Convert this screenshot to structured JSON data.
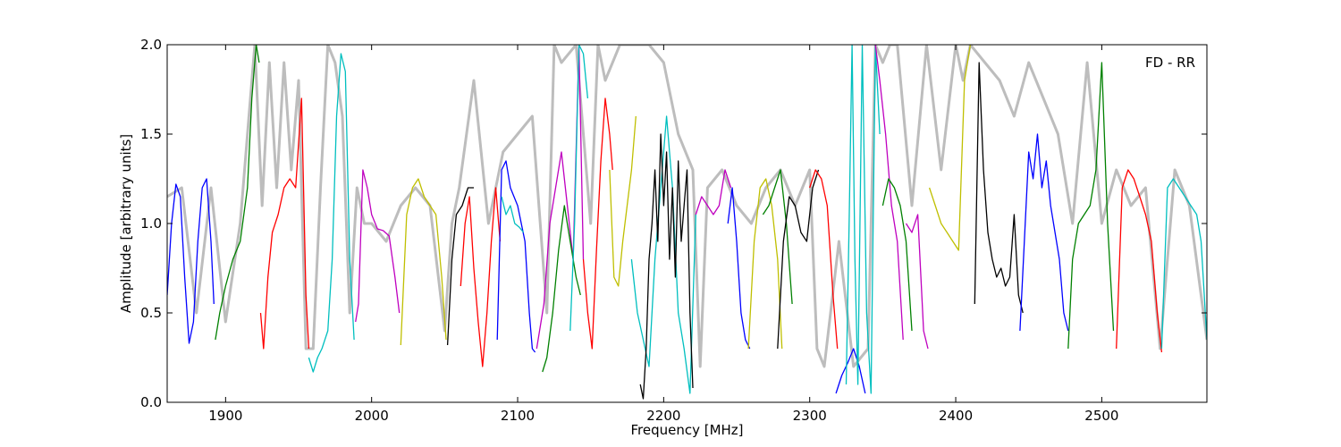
{
  "chart_data": {
    "type": "line",
    "title": "",
    "xlabel": "Frequency [MHz]",
    "ylabel": "Amplitude [arbitrary units]",
    "annotation": "FD - RR",
    "annotation_position": "top-right",
    "xlim": [
      1860,
      2572
    ],
    "ylim": [
      0.0,
      2.0
    ],
    "xticks": [
      1900,
      2000,
      2100,
      2200,
      2300,
      2400,
      2500
    ],
    "xtick_labels": [
      "1900",
      "2000",
      "2100",
      "2200",
      "2300",
      "2400",
      "2500"
    ],
    "yticks": [
      0.0,
      0.5,
      1.0,
      1.5,
      2.0
    ],
    "ytick_labels": [
      "0.0",
      "0.5",
      "1.0",
      "1.5",
      "2.0"
    ],
    "grid": false,
    "legend": "none",
    "envelope": {
      "color": "#bdbdbd",
      "x": [
        1860,
        1870,
        1880,
        1890,
        1900,
        1910,
        1915,
        1920,
        1925,
        1930,
        1935,
        1940,
        1945,
        1950,
        1955,
        1960,
        1965,
        1970,
        1975,
        1980,
        1985,
        1990,
        1995,
        2000,
        2010,
        2020,
        2030,
        2040,
        2050,
        2055,
        2060,
        2070,
        2080,
        2090,
        2100,
        2110,
        2120,
        2125,
        2130,
        2140,
        2150,
        2155,
        2160,
        2170,
        2175,
        2180,
        2190,
        2200,
        2210,
        2220,
        2225,
        2230,
        2240,
        2250,
        2260,
        2270,
        2280,
        2290,
        2300,
        2305,
        2310,
        2320,
        2330,
        2340,
        2345,
        2350,
        2355,
        2360,
        2370,
        2380,
        2390,
        2400,
        2405,
        2410,
        2420,
        2430,
        2440,
        2450,
        2460,
        2470,
        2480,
        2490,
        2500,
        2510,
        2520,
        2530,
        2540,
        2550,
        2560,
        2572
      ],
      "y": [
        1.15,
        1.2,
        0.5,
        1.2,
        0.45,
        1.0,
        1.5,
        2.0,
        1.1,
        1.9,
        1.2,
        1.9,
        1.3,
        1.8,
        0.3,
        0.3,
        1.2,
        2.0,
        1.9,
        1.6,
        0.5,
        1.2,
        1.0,
        1.0,
        0.9,
        1.1,
        1.2,
        1.1,
        0.4,
        1.0,
        1.2,
        1.8,
        1.0,
        1.4,
        1.5,
        1.6,
        0.5,
        2.0,
        1.9,
        2.0,
        1.0,
        2.0,
        1.8,
        2.0,
        2.0,
        2.0,
        2.0,
        1.9,
        1.5,
        1.3,
        0.2,
        1.2,
        1.3,
        1.1,
        1.0,
        1.2,
        1.3,
        1.1,
        1.3,
        0.3,
        0.2,
        0.9,
        0.2,
        0.3,
        2.0,
        1.9,
        2.0,
        2.0,
        1.1,
        2.0,
        1.3,
        2.0,
        1.8,
        2.0,
        1.9,
        1.8,
        1.6,
        1.9,
        1.7,
        1.5,
        1.0,
        1.9,
        1.0,
        1.3,
        1.1,
        1.2,
        0.3,
        1.3,
        1.1,
        0.35
      ]
    },
    "series": [
      {
        "color": "#0000ff",
        "x": [
          1860,
          1863,
          1866,
          1869,
          1872,
          1875,
          1878,
          1881,
          1884,
          1887,
          1890,
          1892
        ],
        "y": [
          0.6,
          1.0,
          1.22,
          1.15,
          0.7,
          0.33,
          0.45,
          0.9,
          1.2,
          1.25,
          0.9,
          0.55
        ]
      },
      {
        "color": "#008000",
        "x": [
          1893,
          1896,
          1900,
          1905,
          1910,
          1915,
          1918,
          1921,
          1923
        ],
        "y": [
          0.35,
          0.5,
          0.65,
          0.8,
          0.9,
          1.2,
          1.7,
          2.0,
          1.9
        ]
      },
      {
        "color": "#ff0000",
        "x": [
          1924,
          1926,
          1929,
          1932,
          1936,
          1940,
          1944,
          1948,
          1952,
          1955,
          1957
        ],
        "y": [
          0.5,
          0.3,
          0.7,
          0.95,
          1.05,
          1.2,
          1.25,
          1.2,
          1.7,
          0.6,
          0.3
        ]
      },
      {
        "color": "#00bfbf",
        "x": [
          1957,
          1960,
          1963,
          1966,
          1970,
          1973,
          1976,
          1979,
          1982,
          1985,
          1988
        ],
        "y": [
          0.25,
          0.17,
          0.25,
          0.3,
          0.4,
          0.8,
          1.6,
          1.95,
          1.85,
          0.8,
          0.35
        ]
      },
      {
        "color": "#bf00bf",
        "x": [
          1989,
          1991,
          1994,
          1997,
          2000,
          2004,
          2008,
          2012,
          2016,
          2019
        ],
        "y": [
          0.45,
          0.55,
          1.3,
          1.2,
          1.05,
          0.97,
          0.96,
          0.93,
          0.7,
          0.5
        ]
      },
      {
        "color": "#bfbf00",
        "x": [
          2020,
          2024,
          2028,
          2032,
          2036,
          2040,
          2044,
          2048,
          2051
        ],
        "y": [
          0.32,
          1.05,
          1.2,
          1.25,
          1.15,
          1.1,
          1.05,
          0.7,
          0.35
        ]
      },
      {
        "color": "#000000",
        "x": [
          2052,
          2055,
          2058,
          2062,
          2066,
          2070
        ],
        "y": [
          0.32,
          0.8,
          1.05,
          1.1,
          1.2,
          1.2
        ]
      },
      {
        "color": "#ff0000",
        "x": [
          2061,
          2064,
          2067,
          2070,
          2073,
          2076,
          2079,
          2082,
          2085,
          2088
        ],
        "y": [
          0.65,
          1.0,
          1.15,
          0.75,
          0.45,
          0.2,
          0.5,
          0.9,
          1.2,
          0.9
        ]
      },
      {
        "color": "#0000ff",
        "x": [
          2086,
          2089,
          2092,
          2095,
          2100,
          2105,
          2108,
          2110,
          2112
        ],
        "y": [
          0.35,
          1.3,
          1.35,
          1.2,
          1.1,
          0.9,
          0.5,
          0.3,
          0.28
        ]
      },
      {
        "color": "#00bfbf",
        "x": [
          2089,
          2092,
          2095,
          2098,
          2101,
          2104
        ],
        "y": [
          1.15,
          1.05,
          1.1,
          1.0,
          0.98,
          0.95
        ]
      },
      {
        "color": "#bf00bf",
        "x": [
          2113,
          2118,
          2122,
          2126,
          2130,
          2134,
          2138,
          2142,
          2145
        ],
        "y": [
          0.3,
          0.55,
          1.0,
          1.2,
          1.4,
          1.1,
          0.8,
          2.0,
          0.8
        ]
      },
      {
        "color": "#008000",
        "x": [
          2117,
          2120,
          2124,
          2128,
          2132,
          2136,
          2140,
          2143
        ],
        "y": [
          0.17,
          0.25,
          0.5,
          0.85,
          1.1,
          0.9,
          0.7,
          0.6
        ]
      },
      {
        "color": "#00bfbf",
        "x": [
          2136,
          2139,
          2142,
          2145,
          2148
        ],
        "y": [
          0.4,
          1.0,
          2.0,
          1.95,
          1.7
        ]
      },
      {
        "color": "#ff0000",
        "x": [
          2145,
          2148,
          2151,
          2154,
          2157,
          2160,
          2163,
          2165
        ],
        "y": [
          0.8,
          0.5,
          0.3,
          0.85,
          1.35,
          1.7,
          1.5,
          1.3
        ]
      },
      {
        "color": "#bfbf00",
        "x": [
          2163,
          2166,
          2169,
          2172,
          2175,
          2178,
          2181
        ],
        "y": [
          1.3,
          0.7,
          0.65,
          0.9,
          1.1,
          1.3,
          1.6
        ]
      },
      {
        "color": "#00bfbf",
        "x": [
          2178,
          2182,
          2186,
          2190,
          2194,
          2198,
          2202,
          2206,
          2210,
          2214,
          2218,
          2222
        ],
        "y": [
          0.8,
          0.5,
          0.35,
          0.2,
          0.8,
          1.2,
          1.6,
          1.2,
          0.5,
          0.3,
          0.05,
          1.05
        ]
      },
      {
        "color": "#000000",
        "x": [
          2184,
          2186,
          2188,
          2190,
          2192,
          2194,
          2196,
          2198,
          2200,
          2202,
          2204,
          2206,
          2208,
          2210,
          2212,
          2214,
          2216,
          2218,
          2220
        ],
        "y": [
          0.1,
          0.02,
          0.3,
          0.8,
          1.0,
          1.3,
          0.9,
          1.5,
          1.1,
          1.4,
          0.8,
          1.2,
          0.7,
          1.35,
          0.9,
          1.1,
          1.3,
          0.5,
          0.08
        ]
      },
      {
        "color": "#bf00bf",
        "x": [
          2222,
          2226,
          2230,
          2234,
          2238,
          2242,
          2246
        ],
        "y": [
          1.05,
          1.15,
          1.1,
          1.05,
          1.1,
          1.3,
          1.2
        ]
      },
      {
        "color": "#0000ff",
        "x": [
          2244,
          2247,
          2250,
          2253,
          2256,
          2259
        ],
        "y": [
          1.0,
          1.2,
          0.9,
          0.5,
          0.35,
          0.3
        ]
      },
      {
        "color": "#bfbf00",
        "x": [
          2258,
          2262,
          2266,
          2270,
          2274,
          2278,
          2281
        ],
        "y": [
          0.3,
          0.9,
          1.2,
          1.25,
          1.1,
          0.8,
          0.3
        ]
      },
      {
        "color": "#008000",
        "x": [
          2268,
          2272,
          2276,
          2280,
          2284,
          2288
        ],
        "y": [
          1.05,
          1.1,
          1.2,
          1.3,
          1.0,
          0.55
        ]
      },
      {
        "color": "#000000",
        "x": [
          2278,
          2282,
          2286,
          2290,
          2294,
          2298,
          2302,
          2306
        ],
        "y": [
          0.3,
          0.9,
          1.15,
          1.1,
          0.95,
          0.9,
          1.2,
          1.3
        ]
      },
      {
        "color": "#ff0000",
        "x": [
          2300,
          2304,
          2308,
          2312,
          2316,
          2319
        ],
        "y": [
          1.2,
          1.3,
          1.25,
          1.1,
          0.6,
          0.3
        ]
      },
      {
        "color": "#0000ff",
        "x": [
          2318,
          2322,
          2326,
          2330,
          2334,
          2338
        ],
        "y": [
          0.05,
          0.15,
          0.22,
          0.3,
          0.2,
          0.05
        ]
      },
      {
        "color": "#00bfbf",
        "x": [
          2325,
          2327,
          2329,
          2331,
          2333,
          2336,
          2339,
          2342,
          2345,
          2348
        ],
        "y": [
          0.1,
          1.0,
          2.0,
          0.8,
          0.1,
          2.0,
          0.5,
          0.05,
          2.0,
          1.5
        ]
      },
      {
        "color": "#bf00bf",
        "x": [
          2345,
          2348,
          2352,
          2356,
          2360,
          2364
        ],
        "y": [
          2.0,
          1.8,
          1.5,
          1.1,
          0.9,
          0.35
        ]
      },
      {
        "color": "#008000",
        "x": [
          2350,
          2354,
          2358,
          2362,
          2366,
          2370
        ],
        "y": [
          1.1,
          1.25,
          1.2,
          1.1,
          0.9,
          0.4
        ]
      },
      {
        "color": "#bf00bf",
        "x": [
          2366,
          2370,
          2374,
          2378,
          2381
        ],
        "y": [
          1.0,
          0.95,
          1.05,
          0.4,
          0.3
        ]
      },
      {
        "color": "#bfbf00",
        "x": [
          2382,
          2386,
          2390,
          2394,
          2398,
          2402,
          2406,
          2410
        ],
        "y": [
          1.2,
          1.1,
          1.0,
          0.95,
          0.9,
          0.85,
          1.8,
          2.0
        ]
      },
      {
        "color": "#000000",
        "x": [
          2413,
          2416,
          2419,
          2422,
          2425,
          2428,
          2431,
          2434,
          2437,
          2440,
          2443,
          2446
        ],
        "y": [
          0.55,
          1.9,
          1.3,
          0.95,
          0.8,
          0.7,
          0.75,
          0.65,
          0.7,
          1.05,
          0.6,
          0.5
        ]
      },
      {
        "color": "#0000ff",
        "x": [
          2444,
          2447,
          2450,
          2453,
          2456,
          2459,
          2462,
          2465,
          2468,
          2471,
          2474,
          2477
        ],
        "y": [
          0.4,
          0.9,
          1.4,
          1.25,
          1.5,
          1.2,
          1.35,
          1.1,
          0.95,
          0.8,
          0.5,
          0.4
        ]
      },
      {
        "color": "#008000",
        "x": [
          2477,
          2480,
          2484,
          2488,
          2492,
          2496,
          2500,
          2504,
          2508
        ],
        "y": [
          0.3,
          0.8,
          1.0,
          1.05,
          1.1,
          1.3,
          1.9,
          1.0,
          0.4
        ]
      },
      {
        "color": "#ff0000",
        "x": [
          2510,
          2514,
          2518,
          2522,
          2526,
          2530,
          2534,
          2538,
          2541
        ],
        "y": [
          0.3,
          1.2,
          1.3,
          1.25,
          1.15,
          1.05,
          0.9,
          0.5,
          0.28
        ]
      },
      {
        "color": "#00bfbf",
        "x": [
          2541,
          2545,
          2549,
          2553,
          2557,
          2561,
          2565,
          2568,
          2572
        ],
        "y": [
          0.3,
          1.2,
          1.25,
          1.2,
          1.15,
          1.1,
          1.05,
          0.9,
          0.35
        ]
      }
    ]
  }
}
